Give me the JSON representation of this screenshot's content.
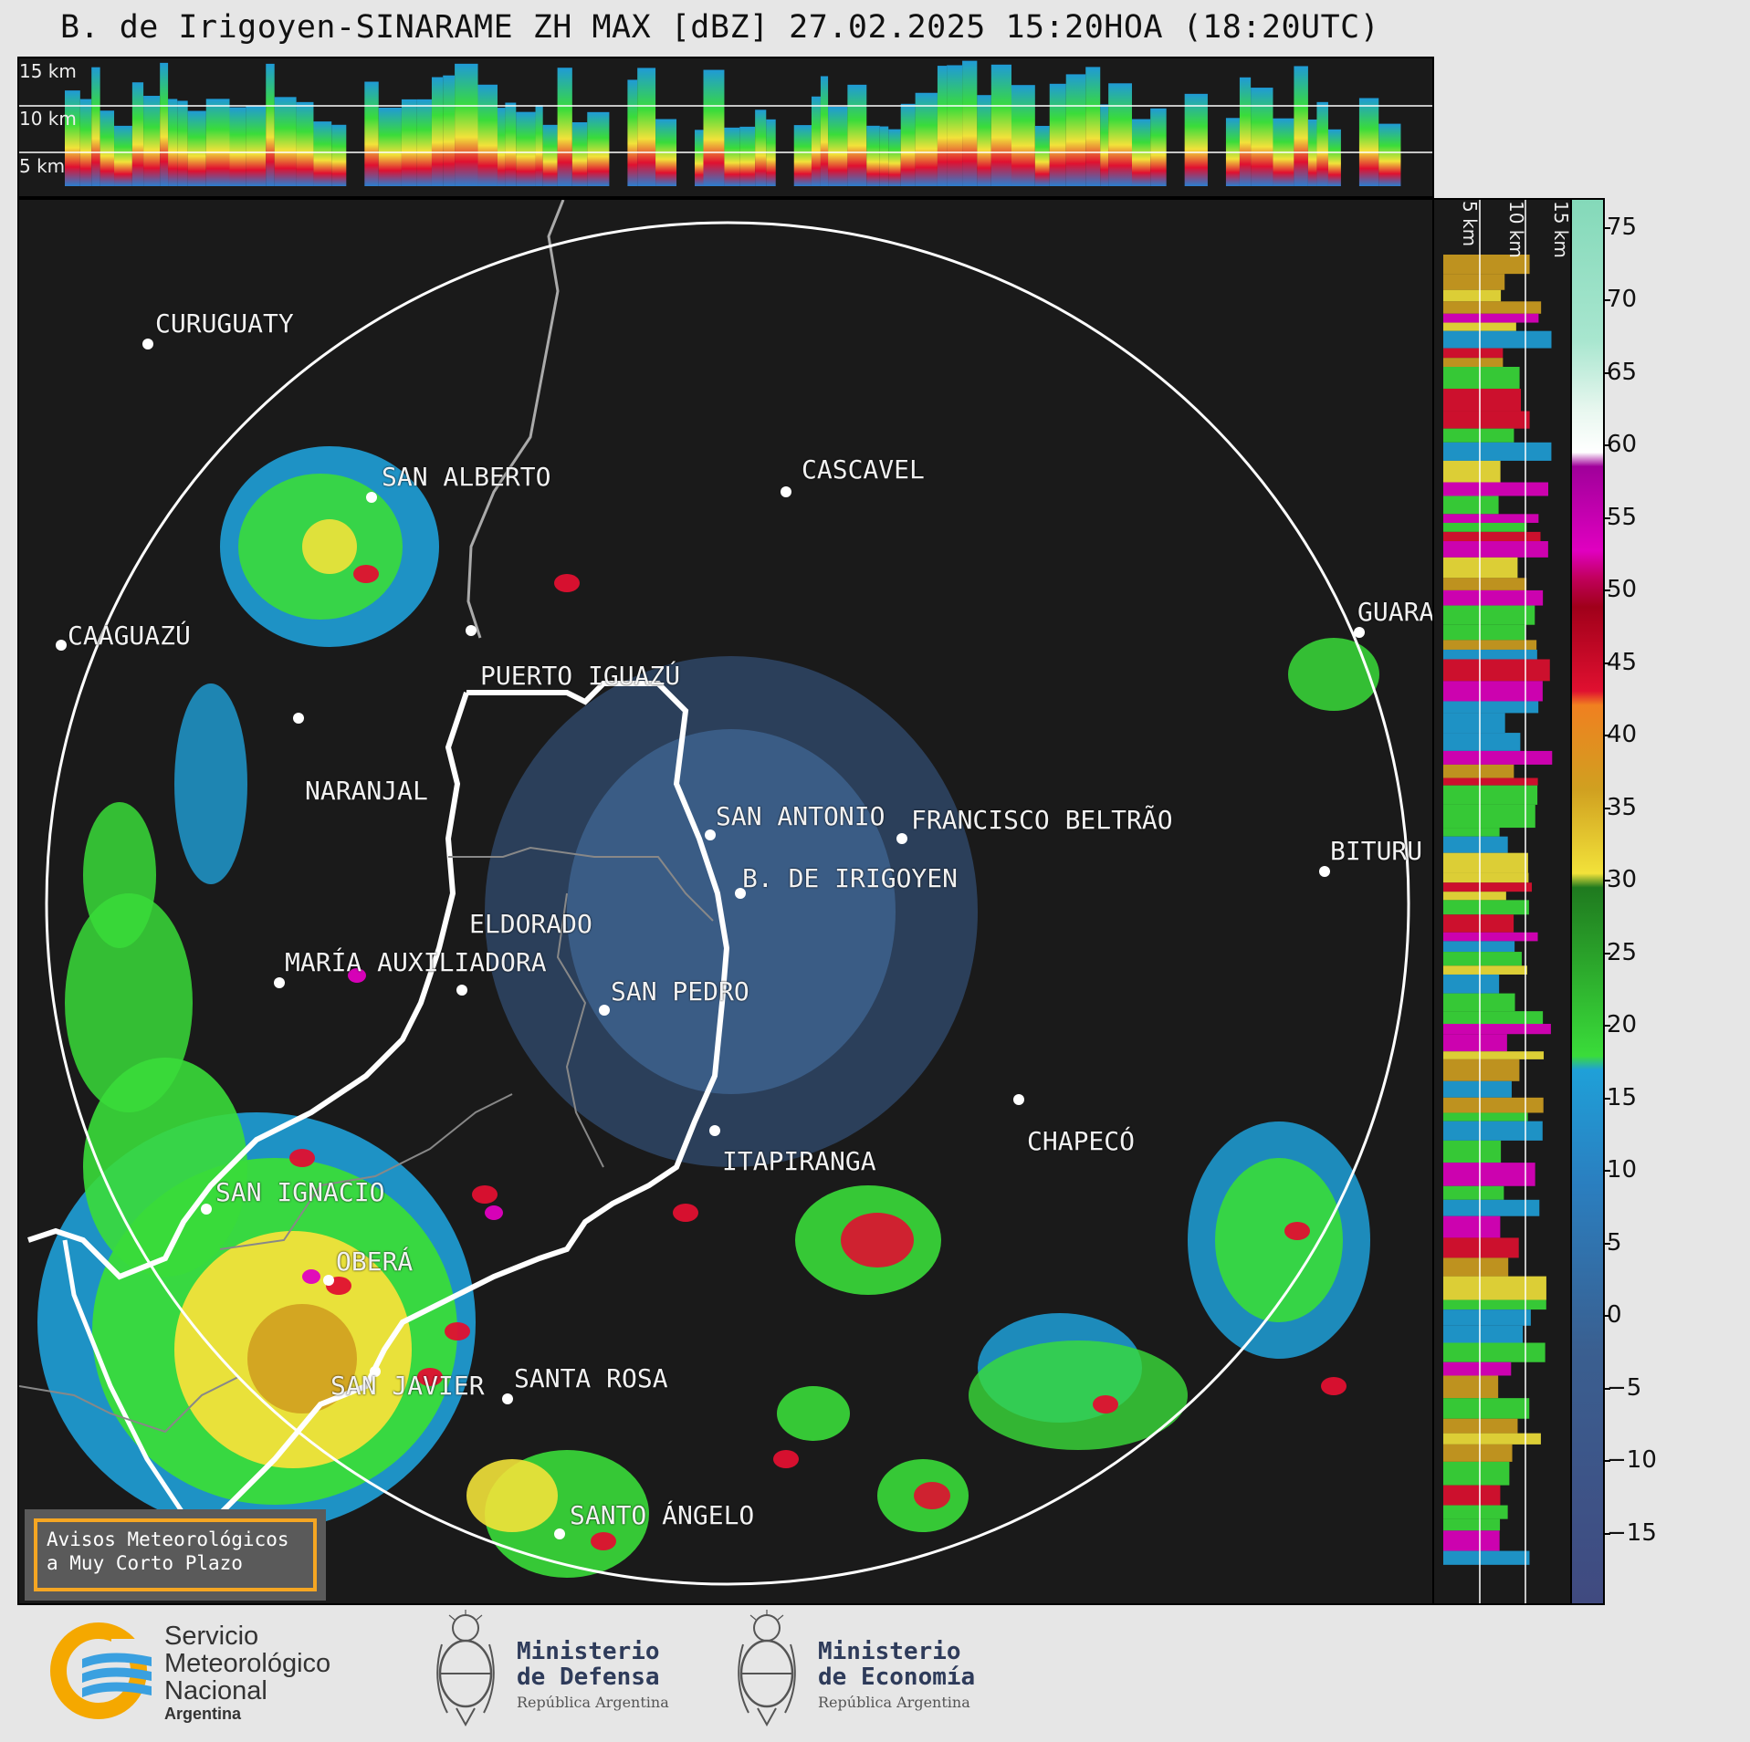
{
  "title": "B. de Irigoyen-SINARAME ZH MAX [dBZ] 27.02.2025 15:20HOA (18:20UTC)",
  "top_panel": {
    "heights": [
      "15 km",
      "10 km",
      "5 km"
    ]
  },
  "side_panel": {
    "heights": [
      "5 km",
      "10 km",
      "15 km"
    ]
  },
  "colorbar": {
    "ticks": [
      "75",
      "70",
      "65",
      "60",
      "55",
      "50",
      "45",
      "40",
      "35",
      "30",
      "25",
      "20",
      "15",
      "10",
      "5",
      "0",
      "−5",
      "−10",
      "−15"
    ],
    "tick_values": [
      75,
      70,
      65,
      60,
      55,
      50,
      45,
      40,
      35,
      30,
      25,
      20,
      15,
      10,
      5,
      0,
      -5,
      -10,
      -15
    ],
    "range": [
      -20,
      77
    ]
  },
  "cities": [
    {
      "name": "CURUGUATY"
    },
    {
      "name": "SAN ALBERTO"
    },
    {
      "name": "CASCAVEL"
    },
    {
      "name": "CAAGUAZÚ"
    },
    {
      "name": "GUARA"
    },
    {
      "name": "PUERTO IGUAZÚ"
    },
    {
      "name": "NARANJAL"
    },
    {
      "name": "SAN ANTONIO"
    },
    {
      "name": "FRANCISCO BELTRÃO"
    },
    {
      "name": "BITURU"
    },
    {
      "name": "B. DE IRIGOYEN"
    },
    {
      "name": "ELDORADO"
    },
    {
      "name": "MARÍA AUXILIADORA"
    },
    {
      "name": "SAN PEDRO"
    },
    {
      "name": "CHAPECÓ"
    },
    {
      "name": "ITAPIRANGA"
    },
    {
      "name": "SAN IGNACIO"
    },
    {
      "name": "OBERÁ"
    },
    {
      "name": "SAN JAVIER"
    },
    {
      "name": "SANTA ROSA"
    },
    {
      "name": "SANTO ÁNGELO"
    }
  ],
  "avisos": {
    "line1": "Avisos Meteorológicos",
    "line2": "a Muy Corto Plazo"
  },
  "footer": {
    "smn": {
      "line1": "Servicio",
      "line2": "Meteorológico",
      "line3": "Nacional",
      "line4": "Argentina"
    },
    "defensa": {
      "line1": "Ministerio",
      "line2": "de Defensa",
      "line3": "República Argentina"
    },
    "economia": {
      "line1": "Ministerio",
      "line2": "de Economía",
      "line3": "República Argentina"
    }
  },
  "colors": {
    "background": "#1a1a1a",
    "frame": "#e6e6e6",
    "accent": "#f5a623"
  }
}
